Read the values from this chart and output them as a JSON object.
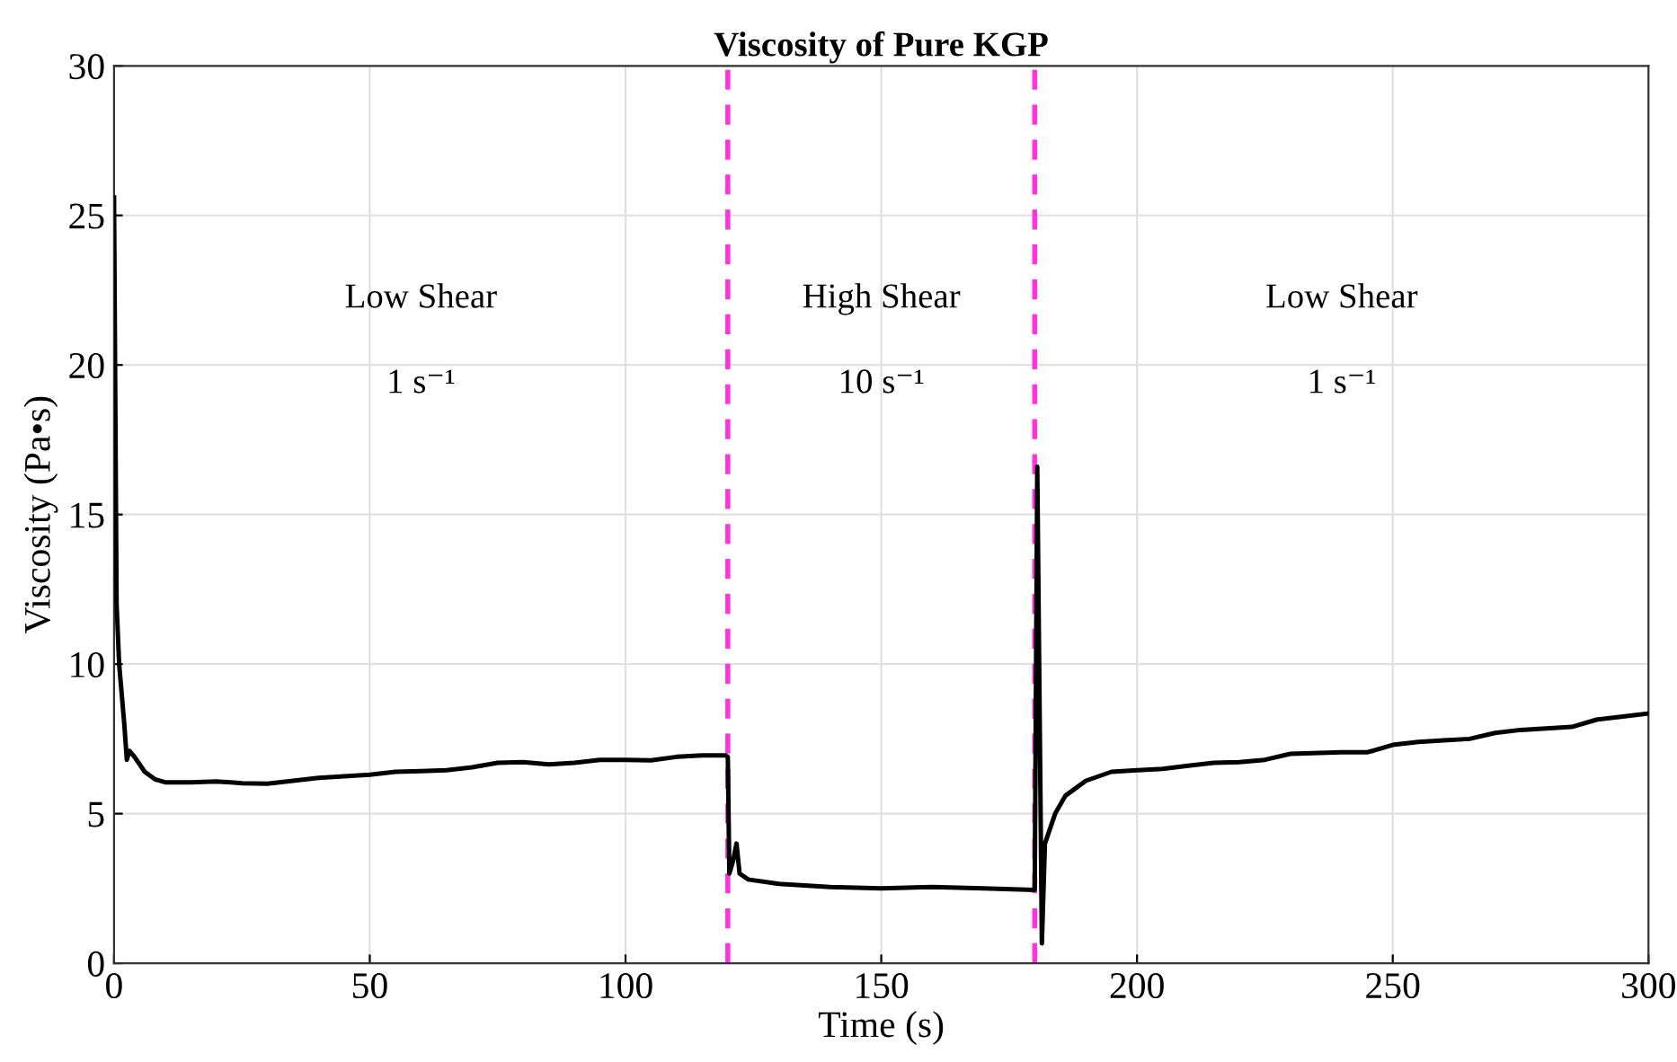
{
  "chart_data": {
    "type": "line",
    "title": "Viscosity of Pure KGP",
    "xlabel": "Time (s)",
    "ylabel": "Viscosity (Pa•s)",
    "series": [
      {
        "color": "#000000",
        "x": [
          0,
          0.5,
          1,
          2,
          2.5,
          3,
          4,
          6,
          8,
          10,
          15,
          20,
          25,
          30,
          35,
          40,
          45,
          50,
          55,
          60,
          65,
          70,
          75,
          80,
          85,
          90,
          95,
          100,
          105,
          110,
          115,
          119.5,
          120,
          120.3,
          121,
          121.7,
          122.3,
          124,
          130,
          140,
          150,
          160,
          170,
          180,
          180.5,
          181.4,
          182,
          184,
          186,
          190,
          195,
          200,
          205,
          210,
          215,
          220,
          225,
          230,
          240,
          245,
          250,
          255,
          260,
          265,
          270,
          275,
          280,
          285,
          290,
          295,
          300
        ],
        "values": [
          25.6,
          12,
          10,
          8,
          6.8,
          7.1,
          6.9,
          6.4,
          6.15,
          6.05,
          6.05,
          6.08,
          6.02,
          6.0,
          6.1,
          6.2,
          6.25,
          6.3,
          6.4,
          6.42,
          6.45,
          6.55,
          6.7,
          6.72,
          6.65,
          6.7,
          6.8,
          6.8,
          6.78,
          6.9,
          6.95,
          6.95,
          6.9,
          3.0,
          3.4,
          4.0,
          3.0,
          2.8,
          2.65,
          2.55,
          2.5,
          2.55,
          2.5,
          2.45,
          16.6,
          0.66,
          4.0,
          5.0,
          5.6,
          6.1,
          6.4,
          6.45,
          6.5,
          6.6,
          6.7,
          6.72,
          6.8,
          7.0,
          7.05,
          7.05,
          7.3,
          7.4,
          7.45,
          7.5,
          7.7,
          7.8,
          7.85,
          7.9,
          8.15,
          8.25,
          8.35
        ]
      }
    ],
    "xlim": [
      0,
      300
    ],
    "xticks": [
      0,
      50,
      100,
      150,
      200,
      250,
      300
    ],
    "ylim": [
      0,
      30
    ],
    "yticks": [
      0,
      5,
      10,
      15,
      20,
      25,
      30
    ],
    "grid": true,
    "line_style": "solid",
    "marker": "none",
    "ref_lines": [
      {
        "axis": "x",
        "value": 120,
        "color": "#ff33dd",
        "line_style": "dashed"
      },
      {
        "axis": "x",
        "value": 180,
        "color": "#ff33dd",
        "line_style": "dashed"
      }
    ],
    "annotations": [
      "Low Shear",
      "1 s⁻¹",
      "High Shear",
      "10 s⁻¹",
      "Low Shear",
      "1 s⁻¹"
    ]
  }
}
